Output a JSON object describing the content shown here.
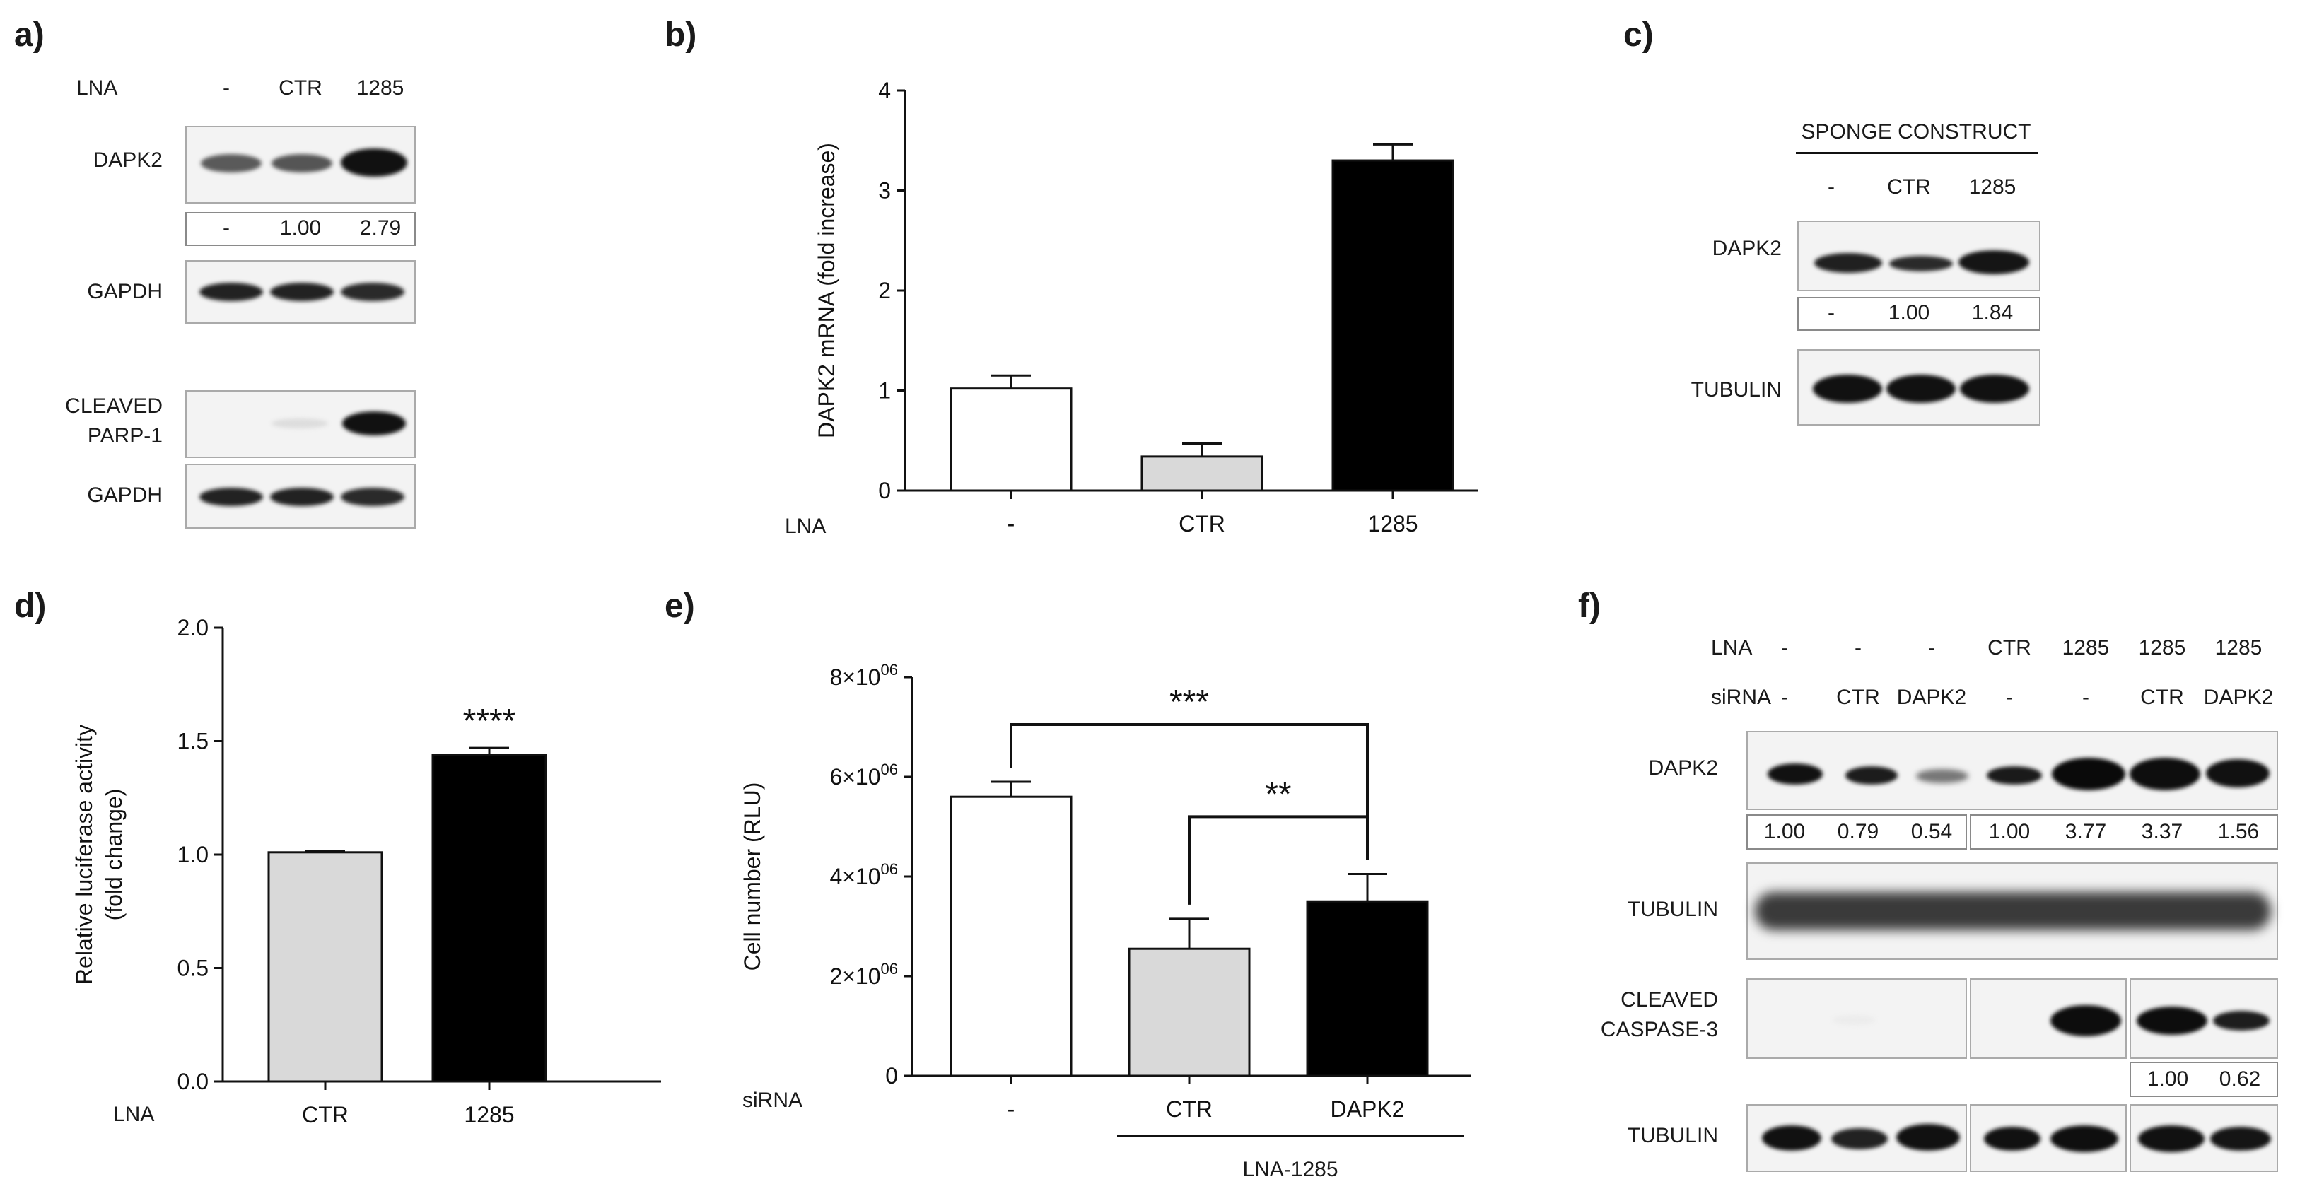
{
  "panels": {
    "a": {
      "label": "a)",
      "row_label": "LNA",
      "lanes": [
        "-",
        "CTR",
        "1285"
      ],
      "blots": [
        {
          "name": "DAPK2",
          "quant": [
            "-",
            "1.00",
            "2.79"
          ]
        },
        {
          "name": "GAPDH"
        },
        {
          "name": "CLEAVED PARP-1",
          "line1": "CLEAVED",
          "line2": "PARP-1"
        },
        {
          "name": "GAPDH"
        }
      ]
    },
    "b": {
      "label": "b)",
      "row_label": "LNA"
    },
    "c": {
      "label": "c)",
      "header": "SPONGE CONSTRUCT",
      "lanes": [
        "-",
        "CTR",
        "1285"
      ],
      "blots": [
        {
          "name": "DAPK2",
          "quant": [
            "-",
            "1.00",
            "1.84"
          ]
        },
        {
          "name": "TUBULIN"
        }
      ]
    },
    "d": {
      "label": "d)",
      "row_label": "LNA"
    },
    "e": {
      "label": "e)",
      "row_label": "siRNA",
      "group_label": "LNA-1285"
    },
    "f": {
      "label": "f)",
      "row1_label": "LNA",
      "row1": [
        "-",
        "-",
        "-",
        "CTR",
        "1285",
        "1285",
        "1285"
      ],
      "row2_label": "siRNA",
      "row2": [
        "-",
        "CTR",
        "DAPK2",
        "-",
        "-",
        "CTR",
        "DAPK2"
      ],
      "blots": [
        {
          "name": "DAPK2",
          "quant": [
            "1.00",
            "0.79",
            "0.54",
            "1.00",
            "3.77",
            "3.37",
            "1.56"
          ]
        },
        {
          "name": "TUBULIN"
        },
        {
          "name": "CLEAVED CASPASE-3",
          "line1": "CLEAVED",
          "line2": "CASPASE-3",
          "quant": [
            "1.00",
            "0.62"
          ]
        },
        {
          "name": "TUBULIN"
        }
      ]
    }
  },
  "chart_data": [
    {
      "panel": "b",
      "type": "bar",
      "categories": [
        "-",
        "CTR",
        "1285"
      ],
      "values": [
        1.02,
        0.34,
        3.3
      ],
      "errors": [
        0.13,
        0.13,
        0.16
      ],
      "colors": [
        "#ffffff",
        "#d9d9d9",
        "#000000"
      ],
      "ylabel": "DAPK2 mRNA (fold increase)",
      "xlabel": "LNA",
      "ylim": [
        0,
        4
      ],
      "yticks": [
        "0",
        "1",
        "2",
        "3",
        "4"
      ]
    },
    {
      "panel": "d",
      "type": "bar",
      "categories": [
        "CTR",
        "1285"
      ],
      "values": [
        1.01,
        1.44
      ],
      "errors": [
        0.005,
        0.03
      ],
      "colors": [
        "#d9d9d9",
        "#000000"
      ],
      "ylabel": "Relative luciferase activity",
      "ylabel2": "(fold change)",
      "xlabel": "LNA",
      "ylim": [
        0,
        2.0
      ],
      "yticks": [
        "0.0",
        "0.5",
        "1.0",
        "1.5",
        "2.0"
      ],
      "significance": "****"
    },
    {
      "panel": "e",
      "type": "bar",
      "categories": [
        "-",
        "CTR",
        "DAPK2"
      ],
      "values": [
        5600000,
        2550000,
        3500000
      ],
      "errors": [
        300000,
        600000,
        550000
      ],
      "colors": [
        "#ffffff",
        "#d9d9d9",
        "#000000"
      ],
      "ylabel": "Cell number (RLU)",
      "xlabel": "siRNA",
      "ylim": [
        0,
        8000000
      ],
      "yticks": [
        "0",
        "2×10",
        "4×10",
        "6×10",
        "8×10"
      ],
      "ytick_exp": "06",
      "brackets": [
        {
          "from": 0,
          "to": 2,
          "label": "***"
        },
        {
          "from": 1,
          "to": 2,
          "label": "**"
        }
      ]
    }
  ],
  "colors": {
    "bar_black": "#000000",
    "bar_gray": "#d9d9d9",
    "frame": "#aaaaaa"
  }
}
